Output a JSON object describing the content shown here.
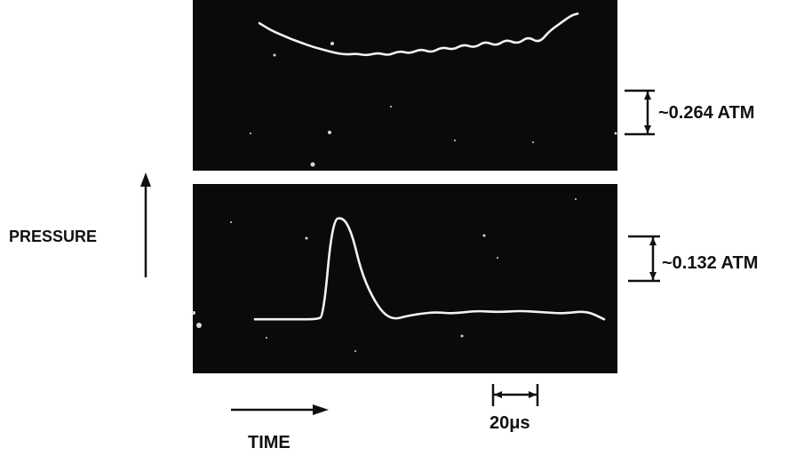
{
  "figure": {
    "background_color": "#ffffff",
    "screen_color": "#0a0a0a",
    "trace_color": "#f2f2f2",
    "ink_color": "#111111"
  },
  "chart_data": [
    {
      "type": "line",
      "panel": "upper oscilloscope trace",
      "title": "",
      "xlabel": "TIME",
      "ylabel": "PRESSURE",
      "time_scale_bar": "20μs",
      "time_scale_value_us": 20,
      "pressure_scale_bar": "~0.264 ATM",
      "pressure_scale_value_atm": 0.264,
      "x_units": "μs",
      "y_units": "ATM (relative)",
      "xlim": [
        0,
        150
      ],
      "ylim": [
        -0.55,
        0.15
      ],
      "series": [
        {
          "x": [
            0,
            5,
            10,
            15,
            20,
            25,
            30,
            35,
            40,
            45,
            50,
            55,
            60,
            65,
            70,
            75,
            80,
            85,
            90,
            95,
            100,
            105,
            110,
            115,
            120,
            125,
            130,
            135,
            140,
            145,
            148
          ],
          "values": [
            0.0,
            -0.07,
            -0.12,
            -0.17,
            -0.21,
            -0.25,
            -0.28,
            -0.31,
            -0.33,
            -0.32,
            -0.34,
            -0.31,
            -0.34,
            -0.29,
            -0.32,
            -0.27,
            -0.31,
            -0.25,
            -0.28,
            -0.22,
            -0.26,
            -0.19,
            -0.24,
            -0.17,
            -0.22,
            -0.14,
            -0.21,
            -0.08,
            0.0,
            0.08,
            0.1
          ]
        }
      ]
    },
    {
      "type": "line",
      "panel": "lower oscilloscope trace",
      "title": "",
      "xlabel": "TIME",
      "ylabel": "PRESSURE",
      "time_scale_bar": "20μs",
      "time_scale_value_us": 20,
      "pressure_scale_bar": "~0.132 ATM",
      "pressure_scale_value_atm": 0.132,
      "x_units": "μs",
      "y_units": "ATM (relative)",
      "xlim": [
        0,
        160
      ],
      "ylim": [
        -0.04,
        0.42
      ],
      "series": [
        {
          "x": [
            0,
            10,
            20,
            28,
            31,
            35,
            40,
            44,
            48,
            53,
            58,
            63,
            68,
            75,
            82,
            90,
            100,
            110,
            120,
            130,
            140,
            150,
            158
          ],
          "values": [
            0.0,
            0.0,
            0.0,
            0.0,
            0.01,
            0.35,
            0.36,
            0.3,
            0.17,
            0.08,
            0.02,
            0.0,
            0.01,
            0.02,
            0.025,
            0.02,
            0.03,
            0.025,
            0.03,
            0.025,
            0.02,
            0.03,
            0.0
          ]
        }
      ]
    }
  ]
}
